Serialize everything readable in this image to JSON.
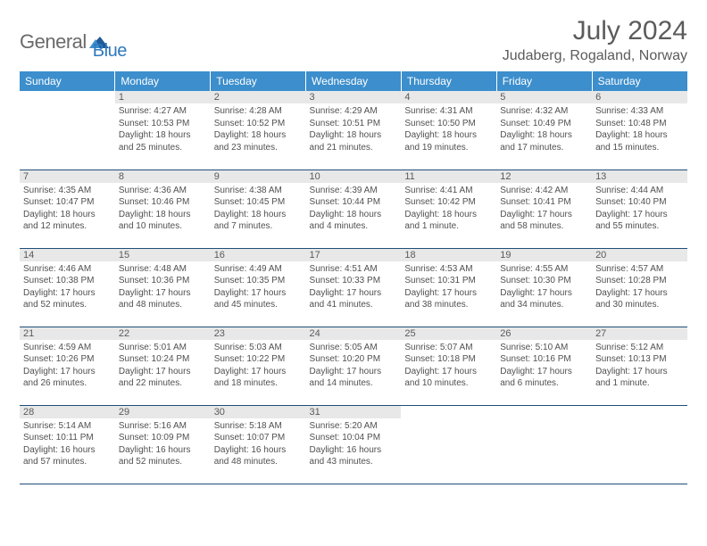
{
  "logo": {
    "text1": "General",
    "text2": "Blue"
  },
  "title": "July 2024",
  "location": "Judaberg, Rogaland, Norway",
  "colors": {
    "header_bg": "#3c8ecc",
    "header_text": "#ffffff",
    "daynum_bg": "#e8e8e8",
    "border": "#1f4e79",
    "logo_gray": "#6a6a6a",
    "logo_blue": "#2f78bd",
    "text": "#505050"
  },
  "weekdays": [
    "Sunday",
    "Monday",
    "Tuesday",
    "Wednesday",
    "Thursday",
    "Friday",
    "Saturday"
  ],
  "weeks": [
    [
      {
        "empty": true
      },
      {
        "n": "1",
        "sr": "Sunrise: 4:27 AM",
        "ss": "Sunset: 10:53 PM",
        "d1": "Daylight: 18 hours",
        "d2": "and 25 minutes."
      },
      {
        "n": "2",
        "sr": "Sunrise: 4:28 AM",
        "ss": "Sunset: 10:52 PM",
        "d1": "Daylight: 18 hours",
        "d2": "and 23 minutes."
      },
      {
        "n": "3",
        "sr": "Sunrise: 4:29 AM",
        "ss": "Sunset: 10:51 PM",
        "d1": "Daylight: 18 hours",
        "d2": "and 21 minutes."
      },
      {
        "n": "4",
        "sr": "Sunrise: 4:31 AM",
        "ss": "Sunset: 10:50 PM",
        "d1": "Daylight: 18 hours",
        "d2": "and 19 minutes."
      },
      {
        "n": "5",
        "sr": "Sunrise: 4:32 AM",
        "ss": "Sunset: 10:49 PM",
        "d1": "Daylight: 18 hours",
        "d2": "and 17 minutes."
      },
      {
        "n": "6",
        "sr": "Sunrise: 4:33 AM",
        "ss": "Sunset: 10:48 PM",
        "d1": "Daylight: 18 hours",
        "d2": "and 15 minutes."
      }
    ],
    [
      {
        "n": "7",
        "sr": "Sunrise: 4:35 AM",
        "ss": "Sunset: 10:47 PM",
        "d1": "Daylight: 18 hours",
        "d2": "and 12 minutes."
      },
      {
        "n": "8",
        "sr": "Sunrise: 4:36 AM",
        "ss": "Sunset: 10:46 PM",
        "d1": "Daylight: 18 hours",
        "d2": "and 10 minutes."
      },
      {
        "n": "9",
        "sr": "Sunrise: 4:38 AM",
        "ss": "Sunset: 10:45 PM",
        "d1": "Daylight: 18 hours",
        "d2": "and 7 minutes."
      },
      {
        "n": "10",
        "sr": "Sunrise: 4:39 AM",
        "ss": "Sunset: 10:44 PM",
        "d1": "Daylight: 18 hours",
        "d2": "and 4 minutes."
      },
      {
        "n": "11",
        "sr": "Sunrise: 4:41 AM",
        "ss": "Sunset: 10:42 PM",
        "d1": "Daylight: 18 hours",
        "d2": "and 1 minute."
      },
      {
        "n": "12",
        "sr": "Sunrise: 4:42 AM",
        "ss": "Sunset: 10:41 PM",
        "d1": "Daylight: 17 hours",
        "d2": "and 58 minutes."
      },
      {
        "n": "13",
        "sr": "Sunrise: 4:44 AM",
        "ss": "Sunset: 10:40 PM",
        "d1": "Daylight: 17 hours",
        "d2": "and 55 minutes."
      }
    ],
    [
      {
        "n": "14",
        "sr": "Sunrise: 4:46 AM",
        "ss": "Sunset: 10:38 PM",
        "d1": "Daylight: 17 hours",
        "d2": "and 52 minutes."
      },
      {
        "n": "15",
        "sr": "Sunrise: 4:48 AM",
        "ss": "Sunset: 10:36 PM",
        "d1": "Daylight: 17 hours",
        "d2": "and 48 minutes."
      },
      {
        "n": "16",
        "sr": "Sunrise: 4:49 AM",
        "ss": "Sunset: 10:35 PM",
        "d1": "Daylight: 17 hours",
        "d2": "and 45 minutes."
      },
      {
        "n": "17",
        "sr": "Sunrise: 4:51 AM",
        "ss": "Sunset: 10:33 PM",
        "d1": "Daylight: 17 hours",
        "d2": "and 41 minutes."
      },
      {
        "n": "18",
        "sr": "Sunrise: 4:53 AM",
        "ss": "Sunset: 10:31 PM",
        "d1": "Daylight: 17 hours",
        "d2": "and 38 minutes."
      },
      {
        "n": "19",
        "sr": "Sunrise: 4:55 AM",
        "ss": "Sunset: 10:30 PM",
        "d1": "Daylight: 17 hours",
        "d2": "and 34 minutes."
      },
      {
        "n": "20",
        "sr": "Sunrise: 4:57 AM",
        "ss": "Sunset: 10:28 PM",
        "d1": "Daylight: 17 hours",
        "d2": "and 30 minutes."
      }
    ],
    [
      {
        "n": "21",
        "sr": "Sunrise: 4:59 AM",
        "ss": "Sunset: 10:26 PM",
        "d1": "Daylight: 17 hours",
        "d2": "and 26 minutes."
      },
      {
        "n": "22",
        "sr": "Sunrise: 5:01 AM",
        "ss": "Sunset: 10:24 PM",
        "d1": "Daylight: 17 hours",
        "d2": "and 22 minutes."
      },
      {
        "n": "23",
        "sr": "Sunrise: 5:03 AM",
        "ss": "Sunset: 10:22 PM",
        "d1": "Daylight: 17 hours",
        "d2": "and 18 minutes."
      },
      {
        "n": "24",
        "sr": "Sunrise: 5:05 AM",
        "ss": "Sunset: 10:20 PM",
        "d1": "Daylight: 17 hours",
        "d2": "and 14 minutes."
      },
      {
        "n": "25",
        "sr": "Sunrise: 5:07 AM",
        "ss": "Sunset: 10:18 PM",
        "d1": "Daylight: 17 hours",
        "d2": "and 10 minutes."
      },
      {
        "n": "26",
        "sr": "Sunrise: 5:10 AM",
        "ss": "Sunset: 10:16 PM",
        "d1": "Daylight: 17 hours",
        "d2": "and 6 minutes."
      },
      {
        "n": "27",
        "sr": "Sunrise: 5:12 AM",
        "ss": "Sunset: 10:13 PM",
        "d1": "Daylight: 17 hours",
        "d2": "and 1 minute."
      }
    ],
    [
      {
        "n": "28",
        "sr": "Sunrise: 5:14 AM",
        "ss": "Sunset: 10:11 PM",
        "d1": "Daylight: 16 hours",
        "d2": "and 57 minutes."
      },
      {
        "n": "29",
        "sr": "Sunrise: 5:16 AM",
        "ss": "Sunset: 10:09 PM",
        "d1": "Daylight: 16 hours",
        "d2": "and 52 minutes."
      },
      {
        "n": "30",
        "sr": "Sunrise: 5:18 AM",
        "ss": "Sunset: 10:07 PM",
        "d1": "Daylight: 16 hours",
        "d2": "and 48 minutes."
      },
      {
        "n": "31",
        "sr": "Sunrise: 5:20 AM",
        "ss": "Sunset: 10:04 PM",
        "d1": "Daylight: 16 hours",
        "d2": "and 43 minutes."
      },
      {
        "empty": true
      },
      {
        "empty": true
      },
      {
        "empty": true
      }
    ]
  ]
}
